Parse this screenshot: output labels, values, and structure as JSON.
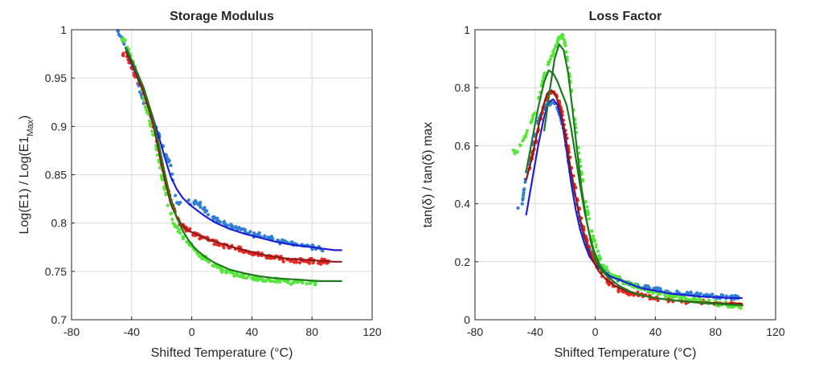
{
  "chart_data": [
    {
      "type": "scatter",
      "title": "Storage Modulus",
      "xlabel": "Shifted Temperature (°C)",
      "ylabel_parts": [
        "Log(E1) / Log(E1",
        "Max",
        ")"
      ],
      "xlim": [
        -80,
        120
      ],
      "ylim": [
        0.7,
        1.0
      ],
      "xticks": [
        "-80",
        "-40",
        "0",
        "40",
        "80",
        "120"
      ],
      "yticks": [
        "0.7",
        "0.75",
        "0.8",
        "0.85",
        "0.9",
        "0.95",
        "1"
      ],
      "grid": true,
      "fits": [
        {
          "color": "#1f1fd6",
          "x": [
            -44,
            -38,
            -32,
            -26,
            -22,
            -18,
            -14,
            -10,
            -6,
            -2,
            2,
            8,
            15,
            25,
            35,
            45,
            55,
            65,
            75,
            85,
            95,
            100
          ],
          "y": [
            0.978,
            0.958,
            0.935,
            0.91,
            0.89,
            0.868,
            0.848,
            0.835,
            0.826,
            0.82,
            0.815,
            0.808,
            0.801,
            0.794,
            0.789,
            0.785,
            0.781,
            0.778,
            0.776,
            0.774,
            0.772,
            0.772
          ]
        },
        {
          "color": "#8b1a1a",
          "x": [
            -44,
            -38,
            -32,
            -26,
            -22,
            -18,
            -14,
            -10,
            -6,
            -2,
            2,
            8,
            15,
            25,
            35,
            45,
            55,
            65,
            75,
            85,
            95,
            100
          ],
          "y": [
            0.978,
            0.96,
            0.935,
            0.905,
            0.875,
            0.845,
            0.82,
            0.806,
            0.797,
            0.792,
            0.789,
            0.785,
            0.781,
            0.776,
            0.772,
            0.768,
            0.765,
            0.763,
            0.762,
            0.761,
            0.76,
            0.76
          ]
        },
        {
          "color": "#1d7a1d",
          "x": [
            -44,
            -38,
            -32,
            -26,
            -22,
            -18,
            -14,
            -10,
            -6,
            -2,
            2,
            8,
            15,
            25,
            35,
            45,
            55,
            65,
            75,
            85,
            95,
            100
          ],
          "y": [
            0.982,
            0.962,
            0.94,
            0.91,
            0.882,
            0.852,
            0.825,
            0.806,
            0.792,
            0.782,
            0.774,
            0.766,
            0.759,
            0.752,
            0.748,
            0.745,
            0.743,
            0.742,
            0.741,
            0.74,
            0.74,
            0.74
          ]
        }
      ],
      "scatter_series": [
        {
          "color": "#2f7fd8",
          "x": [
            -50,
            -46,
            -42,
            -38,
            -34,
            -30,
            -26,
            -22,
            -18,
            -14,
            -10,
            0,
            5,
            10,
            15,
            20,
            25,
            30,
            35,
            40,
            45,
            50,
            55,
            60,
            65,
            70,
            75,
            80,
            85
          ],
          "y": [
            1.0,
            0.99,
            0.975,
            0.955,
            0.935,
            0.918,
            0.905,
            0.892,
            0.872,
            0.86,
            0.82,
            0.822,
            0.82,
            0.812,
            0.806,
            0.8,
            0.798,
            0.795,
            0.792,
            0.788,
            0.787,
            0.785,
            0.783,
            0.781,
            0.779,
            0.778,
            0.777,
            0.776,
            0.774
          ]
        },
        {
          "color": "#ea2a22",
          "x": [
            -44,
            -40,
            -36,
            -32,
            -28,
            -24,
            -20,
            -16,
            -12,
            -8,
            -4,
            0,
            5,
            10,
            15,
            20,
            25,
            30,
            35,
            40,
            45,
            50,
            55,
            60,
            65,
            70,
            75,
            80,
            85,
            90
          ],
          "y": [
            0.975,
            0.96,
            0.948,
            0.935,
            0.915,
            0.888,
            0.86,
            0.835,
            0.815,
            0.8,
            0.794,
            0.79,
            0.787,
            0.785,
            0.78,
            0.778,
            0.776,
            0.774,
            0.771,
            0.769,
            0.767,
            0.766,
            0.764,
            0.763,
            0.762,
            0.762,
            0.761,
            0.761,
            0.76,
            0.76
          ]
        },
        {
          "color": "#55e63a",
          "x": [
            -44,
            -40,
            -36,
            -32,
            -28,
            -24,
            -20,
            -16,
            -12,
            -8,
            -4,
            0,
            5,
            10,
            15,
            20,
            25,
            30,
            35,
            40,
            45,
            50,
            55,
            60,
            65,
            70,
            75,
            80
          ],
          "y": [
            0.99,
            0.97,
            0.952,
            0.93,
            0.905,
            0.88,
            0.848,
            0.82,
            0.8,
            0.79,
            0.782,
            0.776,
            0.768,
            0.762,
            0.756,
            0.752,
            0.749,
            0.746,
            0.744,
            0.743,
            0.742,
            0.741,
            0.741,
            0.74,
            0.739,
            0.739,
            0.738,
            0.738
          ]
        }
      ]
    },
    {
      "type": "scatter",
      "title": "Loss Factor",
      "xlabel": "Shifted Temperature (°C)",
      "ylabel": "tan(δ) / tan(δ) max",
      "xlim": [
        -80,
        120
      ],
      "ylim": [
        0,
        1
      ],
      "xticks": [
        "-80",
        "-40",
        "0",
        "40",
        "80",
        "120"
      ],
      "yticks": [
        "0",
        "0.2",
        "0.4",
        "0.6",
        "0.8",
        "1"
      ],
      "grid": true,
      "fits": [
        {
          "color": "#1f1fd6",
          "x": [
            -46,
            -42,
            -38,
            -34,
            -31,
            -28,
            -25,
            -22,
            -19,
            -16,
            -13,
            -10,
            -7,
            -4,
            0,
            5,
            10,
            15,
            20,
            30,
            40,
            50,
            60,
            70,
            80,
            90,
            98
          ],
          "y": [
            0.36,
            0.48,
            0.6,
            0.7,
            0.75,
            0.76,
            0.74,
            0.68,
            0.58,
            0.47,
            0.38,
            0.31,
            0.26,
            0.22,
            0.19,
            0.17,
            0.15,
            0.14,
            0.13,
            0.11,
            0.1,
            0.09,
            0.085,
            0.08,
            0.078,
            0.075,
            0.075
          ]
        },
        {
          "color": "#8b1a1a",
          "x": [
            -46,
            -42,
            -38,
            -35,
            -32,
            -29,
            -26,
            -23,
            -20,
            -17,
            -14,
            -11,
            -8,
            -5,
            -2,
            2,
            7,
            12,
            20,
            30,
            40,
            50,
            60,
            70,
            80,
            90,
            98
          ],
          "y": [
            0.48,
            0.56,
            0.66,
            0.73,
            0.78,
            0.79,
            0.77,
            0.72,
            0.64,
            0.54,
            0.45,
            0.37,
            0.3,
            0.25,
            0.21,
            0.17,
            0.14,
            0.12,
            0.1,
            0.085,
            0.075,
            0.068,
            0.063,
            0.06,
            0.058,
            0.055,
            0.055
          ]
        },
        {
          "color": "#1d7a1d",
          "x": [
            -46,
            -42,
            -38,
            -34,
            -31,
            -28,
            -25,
            -22,
            -19,
            -16,
            -13,
            -10,
            -7,
            -4,
            -1,
            3,
            8,
            15,
            22,
            30,
            40,
            50,
            60,
            70,
            80,
            90,
            98
          ],
          "y": [
            0.51,
            0.62,
            0.73,
            0.82,
            0.86,
            0.85,
            0.82,
            0.78,
            0.74,
            0.66,
            0.56,
            0.46,
            0.37,
            0.3,
            0.24,
            0.19,
            0.15,
            0.12,
            0.1,
            0.085,
            0.075,
            0.068,
            0.063,
            0.058,
            0.055,
            0.052,
            0.05
          ]
        },
        {
          "color": "#1d7a1d",
          "x": [
            -34,
            -30,
            -27,
            -24,
            -21,
            -18,
            -15,
            -12,
            -9,
            -6,
            -3,
            0,
            4,
            10
          ],
          "y": [
            0.65,
            0.8,
            0.9,
            0.95,
            0.93,
            0.85,
            0.72,
            0.58,
            0.45,
            0.35,
            0.27,
            0.21,
            0.17,
            0.14
          ]
        }
      ],
      "scatter_series": [
        {
          "color": "#2f7fd8",
          "x": [
            -49,
            -46,
            -42,
            -38,
            -35,
            -32,
            -29,
            -26,
            -23,
            -20,
            -17,
            -14,
            -11,
            -8,
            -5,
            -2,
            2,
            6,
            10,
            15,
            20,
            25,
            30,
            35,
            40,
            45,
            50,
            55,
            60,
            65,
            70,
            75,
            80,
            85,
            90,
            95
          ],
          "y": [
            0.38,
            0.5,
            0.6,
            0.68,
            0.72,
            0.74,
            0.75,
            0.74,
            0.7,
            0.62,
            0.52,
            0.44,
            0.36,
            0.3,
            0.26,
            0.22,
            0.19,
            0.17,
            0.15,
            0.14,
            0.13,
            0.12,
            0.115,
            0.11,
            0.105,
            0.1,
            0.095,
            0.09,
            0.09,
            0.085,
            0.085,
            0.082,
            0.08,
            0.08,
            0.078,
            0.078
          ]
        },
        {
          "color": "#ea2a22",
          "x": [
            -44,
            -40,
            -37,
            -34,
            -31,
            -28,
            -25,
            -22,
            -19,
            -16,
            -13,
            -10,
            -7,
            -4,
            -1,
            3,
            7,
            11,
            15,
            20,
            25,
            30,
            35,
            40,
            50,
            60,
            70,
            80,
            90,
            95
          ],
          "y": [
            0.52,
            0.6,
            0.68,
            0.74,
            0.78,
            0.79,
            0.77,
            0.71,
            0.63,
            0.53,
            0.45,
            0.36,
            0.3,
            0.25,
            0.21,
            0.17,
            0.14,
            0.12,
            0.105,
            0.095,
            0.09,
            0.085,
            0.08,
            0.075,
            0.068,
            0.063,
            0.06,
            0.057,
            0.055,
            0.055
          ]
        },
        {
          "color": "#55e63a",
          "x": [
            -52,
            -48,
            -44,
            -40,
            -36,
            -33,
            -30,
            -27,
            -24,
            -22,
            -20,
            -18,
            -15,
            -12,
            -9,
            -6,
            -3,
            0,
            4,
            8,
            12,
            16,
            20,
            25,
            30,
            35,
            40,
            45,
            50,
            55,
            60,
            65,
            70,
            75,
            80,
            85,
            90,
            95
          ],
          "y": [
            0.58,
            0.62,
            0.66,
            0.72,
            0.8,
            0.86,
            0.9,
            0.93,
            0.97,
            0.98,
            0.95,
            0.88,
            0.75,
            0.62,
            0.5,
            0.4,
            0.32,
            0.26,
            0.2,
            0.17,
            0.15,
            0.14,
            0.13,
            0.12,
            0.11,
            0.1,
            0.095,
            0.09,
            0.085,
            0.08,
            0.075,
            0.07,
            0.065,
            0.06,
            0.055,
            0.052,
            0.05,
            0.05
          ]
        }
      ]
    }
  ]
}
